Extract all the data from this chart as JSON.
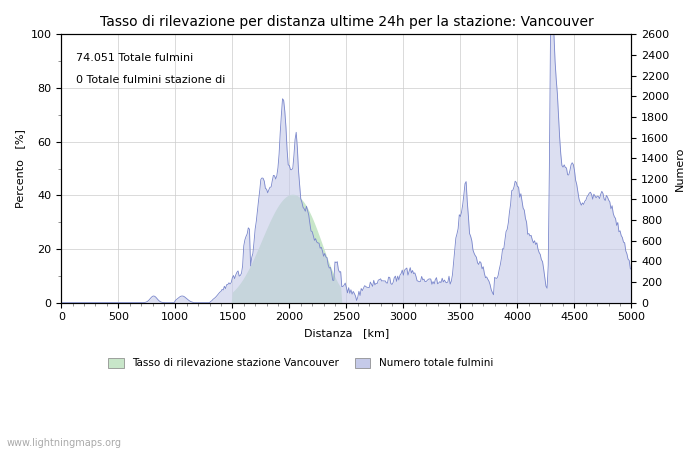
{
  "title": "Tasso di rilevazione per distanza ultime 24h per la stazione: Vancouver",
  "xlabel": "Distanza   [km]",
  "ylabel_left": "Percento   [%]",
  "ylabel_right": "Numero",
  "annotation_line1": "74.051 Totale fulmini",
  "annotation_line2": "0 Totale fulmini stazione di",
  "legend_label1": "Tasso di rilevazione stazione Vancouver",
  "legend_label2": "Numero totale fulmini",
  "watermark": "www.lightningmaps.org",
  "xlim": [
    0,
    5000
  ],
  "ylim_left": [
    0,
    100
  ],
  "ylim_right": [
    0,
    2600
  ],
  "xticks": [
    0,
    500,
    1000,
    1500,
    2000,
    2500,
    3000,
    3500,
    4000,
    4500,
    5000
  ],
  "yticks_left": [
    0,
    20,
    40,
    60,
    80,
    100
  ],
  "yticks_right": [
    0,
    200,
    400,
    600,
    800,
    1000,
    1200,
    1400,
    1600,
    1800,
    2000,
    2200,
    2400,
    2600
  ],
  "fill_color_green": "#c8e6c9",
  "fill_color_blue": "#c5cae9",
  "line_color": "#7986cb",
  "bg_color": "#ffffff",
  "grid_color": "#cccccc",
  "title_fontsize": 10,
  "label_fontsize": 8,
  "tick_fontsize": 8,
  "annotation_fontsize": 8
}
